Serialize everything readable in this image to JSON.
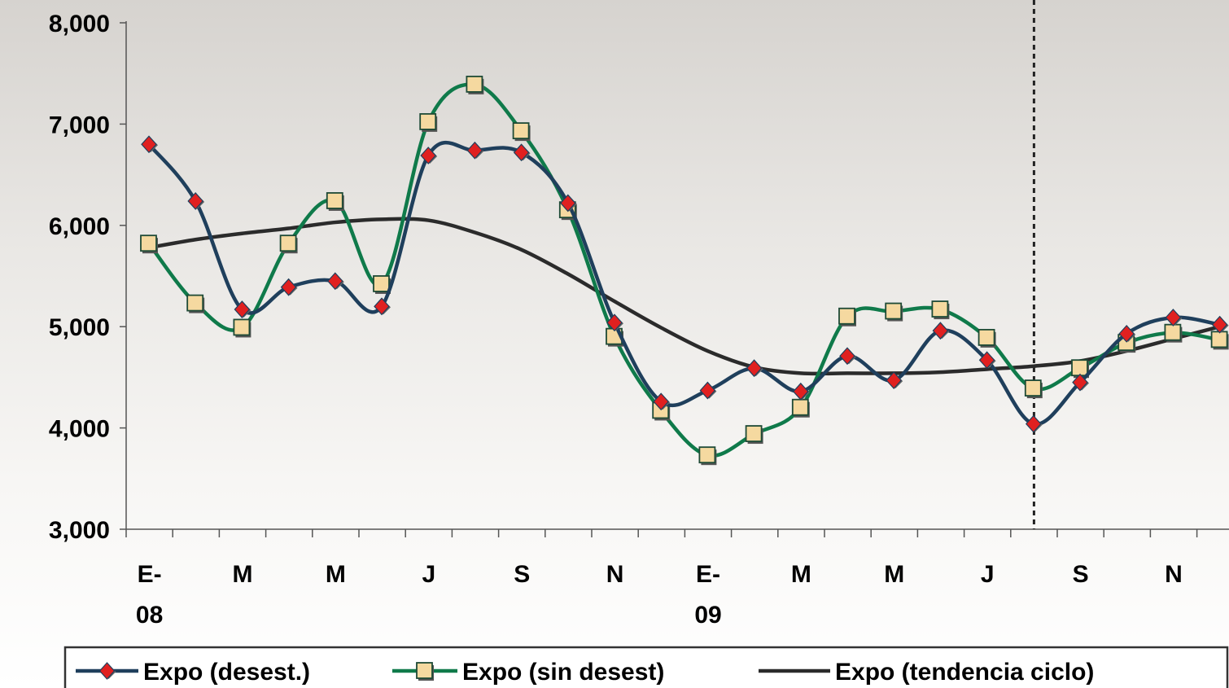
{
  "chart_data": {
    "type": "line",
    "ylim": [
      3000,
      8000
    ],
    "y_ticks": [
      "8,000",
      "7,000",
      "6,000",
      "5,000",
      "4,000",
      "3,000"
    ],
    "y_tick_values": [
      8000,
      7000,
      6000,
      5000,
      4000,
      3000
    ],
    "x_tick_labels": [
      {
        "lines": [
          "E-",
          "08"
        ],
        "index": 0.5
      },
      {
        "lines": [
          "M"
        ],
        "index": 2.5
      },
      {
        "lines": [
          "M"
        ],
        "index": 4.5
      },
      {
        "lines": [
          "J"
        ],
        "index": 6.5
      },
      {
        "lines": [
          "S"
        ],
        "index": 8.5
      },
      {
        "lines": [
          "N"
        ],
        "index": 10.5
      },
      {
        "lines": [
          "E-",
          "09"
        ],
        "index": 12.5
      },
      {
        "lines": [
          "M"
        ],
        "index": 14.5
      },
      {
        "lines": [
          "M"
        ],
        "index": 16.5
      },
      {
        "lines": [
          "J"
        ],
        "index": 18.5
      },
      {
        "lines": [
          "S"
        ],
        "index": 20.5
      },
      {
        "lines": [
          "N"
        ],
        "index": 22.5
      }
    ],
    "reference_line_index": 19.5,
    "grid": false,
    "legend_position": "bottom",
    "series": [
      {
        "name": "Expo (desest.)",
        "color": "#1f3f5c",
        "marker": "diamond",
        "marker_color": "#e02020",
        "values": [
          6800,
          6240,
          5170,
          5390,
          5450,
          5200,
          6690,
          6740,
          6720,
          6220,
          5040,
          4260,
          4370,
          4590,
          4360,
          4710,
          4470,
          4960,
          4670,
          4040,
          4450,
          4930,
          5090,
          5020
        ]
      },
      {
        "name": "Expo (sin desest)",
        "color": "#0f7a4a",
        "marker": "square",
        "marker_color": "#f5d9a0",
        "values": [
          5820,
          5230,
          4990,
          5820,
          6240,
          5420,
          7020,
          7390,
          6930,
          6150,
          4900,
          4170,
          3730,
          3940,
          4200,
          5100,
          5150,
          5170,
          4890,
          4390,
          4590,
          4840,
          4940,
          4870
        ]
      },
      {
        "name": "Expo (tendencia ciclo)",
        "color": "#2b2b2b",
        "marker": "none",
        "values": [
          5780,
          5860,
          5920,
          5970,
          6030,
          6060,
          6050,
          5930,
          5760,
          5520,
          5250,
          4990,
          4760,
          4600,
          4540,
          4540,
          4540,
          4550,
          4580,
          4610,
          4660,
          4760,
          4880,
          5000
        ]
      }
    ]
  }
}
